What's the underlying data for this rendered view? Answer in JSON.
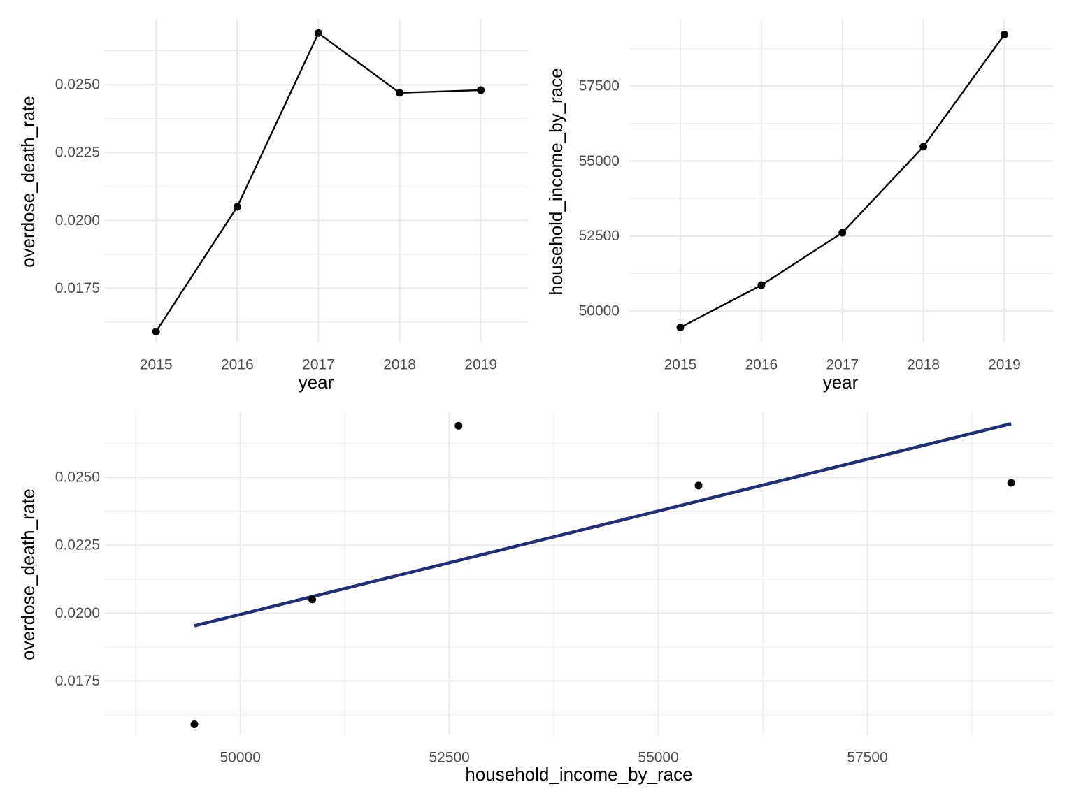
{
  "colors": {
    "points": "#000000",
    "line": "#000000",
    "fit": "#1f2f78",
    "grid": "#ebebeb"
  },
  "chart_data": [
    {
      "type": "line",
      "xlabel": "year",
      "ylabel": "overdose_death_rate",
      "x": [
        2015,
        2016,
        2017,
        2018,
        2019
      ],
      "y": [
        0.0159,
        0.0205,
        0.0269,
        0.0247,
        0.0248
      ],
      "xticks": [
        2015,
        2016,
        2017,
        2018,
        2019
      ],
      "xtick_labels": [
        "2015",
        "2016",
        "2017",
        "2018",
        "2019"
      ],
      "yticks": [
        0.0175,
        0.02,
        0.0225,
        0.025
      ],
      "ytick_labels": [
        "0.0175",
        "0.0200",
        "0.0225",
        "0.0250"
      ],
      "xlim": [
        2014.37,
        2019.58
      ],
      "ylim": [
        0.0155,
        0.0274
      ],
      "grid": true
    },
    {
      "type": "line",
      "xlabel": "year",
      "ylabel": "household_income_by_race",
      "x": [
        2015,
        2016,
        2017,
        2018,
        2019
      ],
      "y": [
        49450,
        50860,
        52610,
        55480,
        59220
      ],
      "xticks": [
        2015,
        2016,
        2017,
        2018,
        2019
      ],
      "xtick_labels": [
        "2015",
        "2016",
        "2017",
        "2018",
        "2019"
      ],
      "yticks": [
        50000,
        52500,
        55000,
        57500
      ],
      "ytick_labels": [
        "50000",
        "52500",
        "55000",
        "57500"
      ],
      "xlim": [
        2014.37,
        2019.6
      ],
      "ylim": [
        48950,
        59720
      ],
      "grid": true
    },
    {
      "type": "scatter",
      "xlabel": "household_income_by_race",
      "ylabel": "overdose_death_rate",
      "x": [
        49450,
        50860,
        52610,
        55480,
        59220
      ],
      "y": [
        0.0159,
        0.0205,
        0.0269,
        0.0247,
        0.0248
      ],
      "fit": {
        "x": [
          49450,
          59220
        ],
        "y": [
          0.01953,
          0.02698
        ]
      },
      "xticks": [
        50000,
        52500,
        55000,
        57500
      ],
      "xtick_labels": [
        "50000",
        "52500",
        "55000",
        "57500"
      ],
      "yticks": [
        0.0175,
        0.02,
        0.0225,
        0.025
      ],
      "ytick_labels": [
        "0.0175",
        "0.0200",
        "0.0225",
        "0.0250"
      ],
      "xlim": [
        48380,
        59720
      ],
      "ylim": [
        0.0155,
        0.0274
      ],
      "grid": true
    }
  ]
}
